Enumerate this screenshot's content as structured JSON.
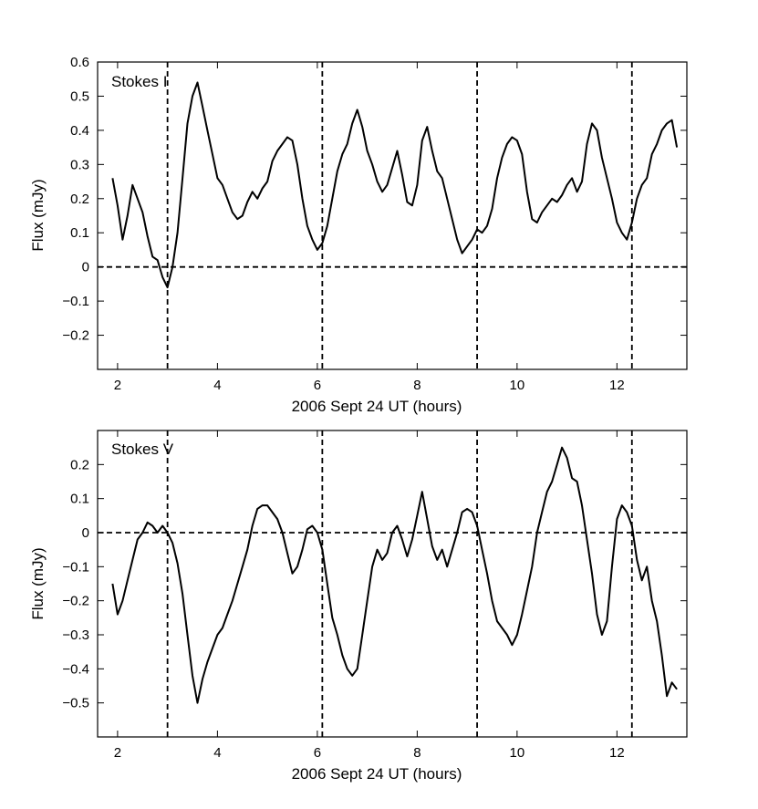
{
  "chart_data": [
    {
      "type": "line",
      "title": "",
      "panel_label": "Stokes I",
      "xlabel": "2006 Sept 24 UT (hours)",
      "ylabel": "Flux (mJy)",
      "xlim": [
        1.6,
        13.4
      ],
      "ylim": [
        -0.3,
        0.6
      ],
      "xticks": [
        2,
        4,
        6,
        8,
        10,
        12
      ],
      "xtick_labels": [
        "2",
        "4",
        "6",
        "8",
        "10",
        "12"
      ],
      "yticks": [
        -0.2,
        -0.1,
        0,
        0.1,
        0.2,
        0.3,
        0.4,
        0.5,
        0.6
      ],
      "ytick_labels": [
        "−0.2",
        "−0.1",
        "0",
        "0.1",
        "0.2",
        "0.3",
        "0.4",
        "0.5",
        "0.6"
      ],
      "reference_lines": {
        "horizontal_y": 0,
        "vertical_x": [
          3.0,
          6.1,
          9.2,
          12.3
        ],
        "style": "dashed"
      },
      "grid": false,
      "series": [
        {
          "color": "#000000",
          "x": [
            1.9,
            2.0,
            2.1,
            2.2,
            2.3,
            2.4,
            2.5,
            2.6,
            2.7,
            2.8,
            2.9,
            3.0,
            3.1,
            3.2,
            3.3,
            3.4,
            3.5,
            3.6,
            3.7,
            3.8,
            3.9,
            4.0,
            4.1,
            4.2,
            4.3,
            4.4,
            4.5,
            4.6,
            4.7,
            4.8,
            4.9,
            5.0,
            5.1,
            5.2,
            5.3,
            5.4,
            5.5,
            5.6,
            5.7,
            5.8,
            5.9,
            6.0,
            6.1,
            6.2,
            6.3,
            6.4,
            6.5,
            6.6,
            6.7,
            6.8,
            6.9,
            7.0,
            7.1,
            7.2,
            7.3,
            7.4,
            7.5,
            7.6,
            7.7,
            7.8,
            7.9,
            8.0,
            8.1,
            8.2,
            8.3,
            8.4,
            8.5,
            8.6,
            8.7,
            8.8,
            8.9,
            9.0,
            9.1,
            9.2,
            9.3,
            9.4,
            9.5,
            9.6,
            9.7,
            9.8,
            9.9,
            10.0,
            10.1,
            10.2,
            10.3,
            10.4,
            10.5,
            10.6,
            10.7,
            10.8,
            10.9,
            11.0,
            11.1,
            11.2,
            11.3,
            11.4,
            11.5,
            11.6,
            11.7,
            11.8,
            11.9,
            12.0,
            12.1,
            12.2,
            12.3,
            12.4,
            12.5,
            12.6,
            12.7,
            12.8,
            12.9,
            13.0,
            13.1,
            13.2
          ],
          "y": [
            0.26,
            0.18,
            0.08,
            0.15,
            0.24,
            0.2,
            0.16,
            0.09,
            0.03,
            0.02,
            -0.03,
            -0.06,
            0.0,
            0.1,
            0.26,
            0.42,
            0.5,
            0.54,
            0.47,
            0.4,
            0.33,
            0.26,
            0.24,
            0.2,
            0.16,
            0.14,
            0.15,
            0.19,
            0.22,
            0.2,
            0.23,
            0.25,
            0.31,
            0.34,
            0.36,
            0.38,
            0.37,
            0.3,
            0.2,
            0.12,
            0.08,
            0.05,
            0.07,
            0.12,
            0.2,
            0.28,
            0.33,
            0.36,
            0.42,
            0.46,
            0.41,
            0.34,
            0.3,
            0.25,
            0.22,
            0.24,
            0.29,
            0.34,
            0.27,
            0.19,
            0.18,
            0.24,
            0.37,
            0.41,
            0.34,
            0.28,
            0.26,
            0.2,
            0.14,
            0.08,
            0.04,
            0.06,
            0.08,
            0.11,
            0.1,
            0.12,
            0.17,
            0.26,
            0.32,
            0.36,
            0.38,
            0.37,
            0.33,
            0.22,
            0.14,
            0.13,
            0.16,
            0.18,
            0.2,
            0.19,
            0.21,
            0.24,
            0.26,
            0.22,
            0.25,
            0.36,
            0.42,
            0.4,
            0.32,
            0.26,
            0.2,
            0.13,
            0.1,
            0.08,
            0.13,
            0.2,
            0.24,
            0.26,
            0.33,
            0.36,
            0.4,
            0.42,
            0.43,
            0.35
          ]
        }
      ]
    },
    {
      "type": "line",
      "title": "",
      "panel_label": "Stokes V",
      "xlabel": "2006 Sept 24 UT (hours)",
      "ylabel": "Flux (mJy)",
      "xlim": [
        1.6,
        13.4
      ],
      "ylim": [
        -0.6,
        0.3
      ],
      "xticks": [
        2,
        4,
        6,
        8,
        10,
        12
      ],
      "xtick_labels": [
        "2",
        "4",
        "6",
        "8",
        "10",
        "12"
      ],
      "yticks": [
        -0.5,
        -0.4,
        -0.3,
        -0.2,
        -0.1,
        0,
        0.1,
        0.2
      ],
      "ytick_labels": [
        "−0.5",
        "−0.4",
        "−0.3",
        "−0.2",
        "−0.1",
        "0",
        "0.1",
        "0.2"
      ],
      "reference_lines": {
        "horizontal_y": 0,
        "vertical_x": [
          3.0,
          6.1,
          9.2,
          12.3
        ],
        "style": "dashed"
      },
      "grid": false,
      "series": [
        {
          "color": "#000000",
          "x": [
            1.9,
            2.0,
            2.1,
            2.2,
            2.3,
            2.4,
            2.5,
            2.6,
            2.7,
            2.8,
            2.9,
            3.0,
            3.1,
            3.2,
            3.3,
            3.4,
            3.5,
            3.6,
            3.7,
            3.8,
            3.9,
            4.0,
            4.1,
            4.2,
            4.3,
            4.4,
            4.5,
            4.6,
            4.7,
            4.8,
            4.9,
            5.0,
            5.1,
            5.2,
            5.3,
            5.4,
            5.5,
            5.6,
            5.7,
            5.8,
            5.9,
            6.0,
            6.1,
            6.2,
            6.3,
            6.4,
            6.5,
            6.6,
            6.7,
            6.8,
            6.9,
            7.0,
            7.1,
            7.2,
            7.3,
            7.4,
            7.5,
            7.6,
            7.7,
            7.8,
            7.9,
            8.0,
            8.1,
            8.2,
            8.3,
            8.4,
            8.5,
            8.6,
            8.7,
            8.8,
            8.9,
            9.0,
            9.1,
            9.2,
            9.3,
            9.4,
            9.5,
            9.6,
            9.7,
            9.8,
            9.9,
            10.0,
            10.1,
            10.2,
            10.3,
            10.4,
            10.5,
            10.6,
            10.7,
            10.8,
            10.9,
            11.0,
            11.1,
            11.2,
            11.3,
            11.4,
            11.5,
            11.6,
            11.7,
            11.8,
            11.9,
            12.0,
            12.1,
            12.2,
            12.3,
            12.4,
            12.5,
            12.6,
            12.7,
            12.8,
            12.9,
            13.0,
            13.1,
            13.2
          ],
          "y": [
            -0.15,
            -0.24,
            -0.2,
            -0.14,
            -0.08,
            -0.02,
            0.0,
            0.03,
            0.02,
            0.0,
            0.02,
            0.0,
            -0.03,
            -0.09,
            -0.18,
            -0.3,
            -0.42,
            -0.5,
            -0.43,
            -0.38,
            -0.34,
            -0.3,
            -0.28,
            -0.24,
            -0.2,
            -0.15,
            -0.1,
            -0.05,
            0.02,
            0.07,
            0.08,
            0.08,
            0.06,
            0.04,
            0.0,
            -0.06,
            -0.12,
            -0.1,
            -0.05,
            0.01,
            0.02,
            0.0,
            -0.05,
            -0.15,
            -0.25,
            -0.3,
            -0.36,
            -0.4,
            -0.42,
            -0.4,
            -0.3,
            -0.2,
            -0.1,
            -0.05,
            -0.08,
            -0.06,
            0.0,
            0.02,
            -0.02,
            -0.07,
            -0.02,
            0.05,
            0.12,
            0.04,
            -0.04,
            -0.08,
            -0.05,
            -0.1,
            -0.05,
            0.0,
            0.06,
            0.07,
            0.06,
            0.02,
            -0.05,
            -0.12,
            -0.2,
            -0.26,
            -0.28,
            -0.3,
            -0.33,
            -0.3,
            -0.24,
            -0.17,
            -0.1,
            0.0,
            0.06,
            0.12,
            0.15,
            0.2,
            0.25,
            0.22,
            0.16,
            0.15,
            0.08,
            -0.02,
            -0.12,
            -0.24,
            -0.3,
            -0.26,
            -0.1,
            0.04,
            0.08,
            0.06,
            0.02,
            -0.08,
            -0.14,
            -0.1,
            -0.2,
            -0.26,
            -0.36,
            -0.48,
            -0.44,
            -0.46
          ]
        }
      ]
    }
  ]
}
